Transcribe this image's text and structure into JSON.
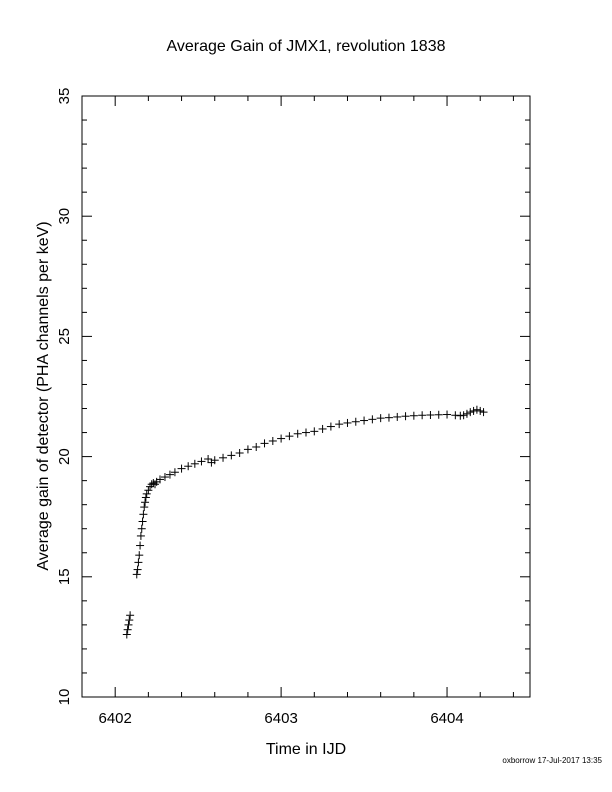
{
  "chart_data": {
    "type": "scatter",
    "title": "Average Gain of JMX1, revolution 1838",
    "xlabel": "Time in IJD",
    "ylabel": "Average gain of detector (PHA channels per keV)",
    "xlim": [
      6401.8,
      6404.5
    ],
    "ylim": [
      10,
      35
    ],
    "xticks": [
      6402,
      6403,
      6404
    ],
    "xtick_labels": [
      "6402",
      "6403",
      "6404"
    ],
    "yticks": [
      10,
      15,
      20,
      25,
      30,
      35
    ],
    "ytick_labels": [
      "10",
      "15",
      "20",
      "25",
      "30",
      "35"
    ],
    "marker": "plus",
    "grid": false,
    "legend": "none",
    "series": [
      {
        "x": [
          6402.07,
          6402.075,
          6402.08,
          6402.085,
          6402.09,
          6402.13,
          6402.135,
          6402.14,
          6402.145,
          6402.15,
          6402.155,
          6402.16,
          6402.165,
          6402.17,
          6402.175,
          6402.18,
          6402.185,
          6402.19,
          6402.2,
          6402.21,
          6402.22,
          6402.23,
          6402.24,
          6402.25,
          6402.27,
          6402.3,
          6402.33,
          6402.36,
          6402.4,
          6402.44,
          6402.48,
          6402.52,
          6402.56,
          6402.58,
          6402.6,
          6402.65,
          6402.7,
          6402.75,
          6402.8,
          6402.85,
          6402.9,
          6402.95,
          6403.0,
          6403.05,
          6403.1,
          6403.15,
          6403.2,
          6403.25,
          6403.3,
          6403.35,
          6403.4,
          6403.45,
          6403.5,
          6403.55,
          6403.6,
          6403.65,
          6403.7,
          6403.75,
          6403.8,
          6403.85,
          6403.9,
          6403.95,
          6404.0,
          6404.05,
          6404.08,
          6404.1,
          6404.12,
          6404.14,
          6404.16,
          6404.18,
          6404.2,
          6404.22
        ],
        "y": [
          12.6,
          12.8,
          13.0,
          13.2,
          13.4,
          15.1,
          15.3,
          15.6,
          15.9,
          16.3,
          16.7,
          17.0,
          17.3,
          17.6,
          17.9,
          18.1,
          18.3,
          18.45,
          18.6,
          18.75,
          18.85,
          18.9,
          18.85,
          18.95,
          19.05,
          19.15,
          19.25,
          19.35,
          19.5,
          19.6,
          19.7,
          19.8,
          19.9,
          19.75,
          19.85,
          19.95,
          20.05,
          20.15,
          20.3,
          20.4,
          20.55,
          20.65,
          20.75,
          20.85,
          20.95,
          21.0,
          21.05,
          21.15,
          21.25,
          21.35,
          21.4,
          21.45,
          21.5,
          21.55,
          21.6,
          21.62,
          21.65,
          21.68,
          21.7,
          21.72,
          21.73,
          21.74,
          21.75,
          21.72,
          21.7,
          21.72,
          21.78,
          21.85,
          21.9,
          21.95,
          21.9,
          21.85
        ]
      }
    ]
  },
  "footer": {
    "stamp": "oxborrow 17-Jul-2017 13:35"
  }
}
